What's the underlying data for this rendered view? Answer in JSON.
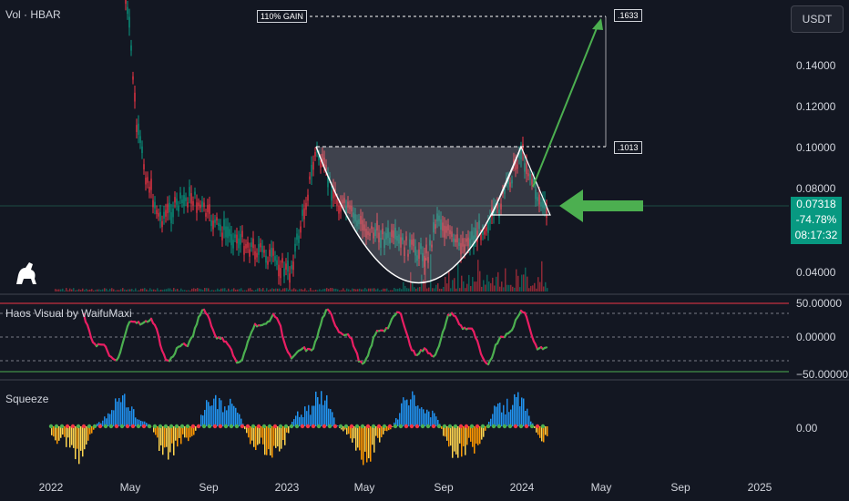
{
  "header": {
    "vol_label": "Vol · HBAR"
  },
  "currency_button": {
    "label": "USDT"
  },
  "price_axis": {
    "labels": [
      "0.14000",
      "0.12000",
      "0.10000",
      "0.08000",
      "0.04000"
    ]
  },
  "current_price": {
    "price": "0.07318",
    "change": "-74.78%",
    "countdown": "08:17:32"
  },
  "annotations": {
    "gain_label": "110% GAIN",
    "target_label": ".1633",
    "breakout_label": ".1013"
  },
  "indicators": {
    "haos": {
      "title": "Haos Visual by WaifuMaxi",
      "levels": [
        "50.00000",
        "0.00000",
        "−50.00000"
      ]
    },
    "squeeze": {
      "title": "Squeeze",
      "level": "0.00"
    }
  },
  "time_axis": {
    "labels": [
      "2022",
      "May",
      "Sep",
      "2023",
      "May",
      "Sep",
      "2024",
      "May",
      "Sep",
      "2025"
    ]
  },
  "colors": {
    "background": "#131722",
    "up": "#089981",
    "down": "#f23645",
    "arrow_green": "#4caf50",
    "osc_green": "#4caf50",
    "osc_red": "#e91e63",
    "squeeze_blue": "#2196f3",
    "squeeze_orange": "#ff9800",
    "squeeze_yellow": "#ffd54f"
  },
  "icons": {
    "logo": "dinosaur-icon"
  }
}
